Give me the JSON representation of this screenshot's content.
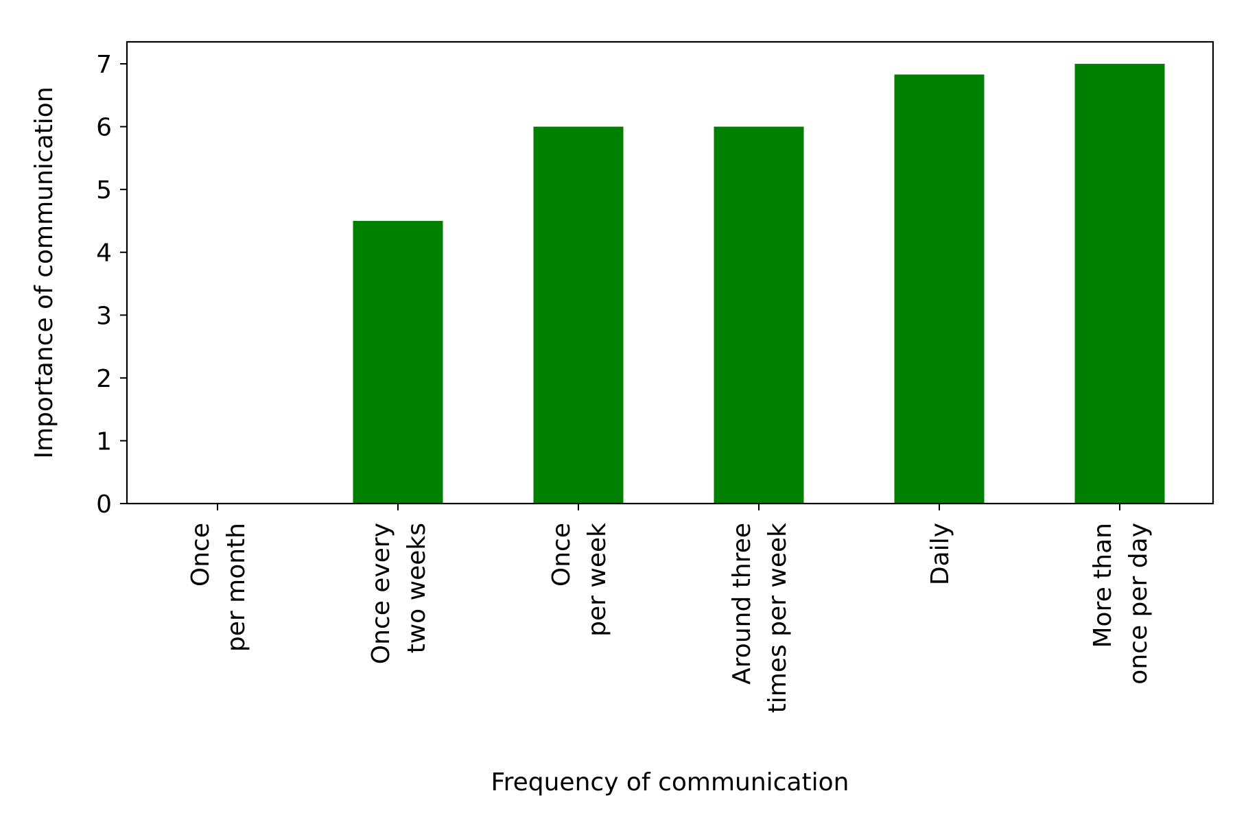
{
  "chart_data": {
    "type": "bar",
    "categories": [
      [
        "Once",
        "per month"
      ],
      [
        "Once every",
        "two weeks"
      ],
      [
        "Once",
        "per week"
      ],
      [
        "Around three",
        "times per week"
      ],
      [
        "Daily"
      ],
      [
        "More than",
        "once per day"
      ]
    ],
    "values": [
      0,
      4.5,
      6,
      6,
      6.83,
      7
    ],
    "xlabel": "Frequency of communication",
    "ylabel": "Importance of communication",
    "ylim": [
      0,
      7.35
    ],
    "yticks": [
      "0",
      "1",
      "2",
      "3",
      "4",
      "5",
      "6",
      "7"
    ],
    "bar_color": "#008000",
    "grid": false,
    "legend": "none"
  }
}
